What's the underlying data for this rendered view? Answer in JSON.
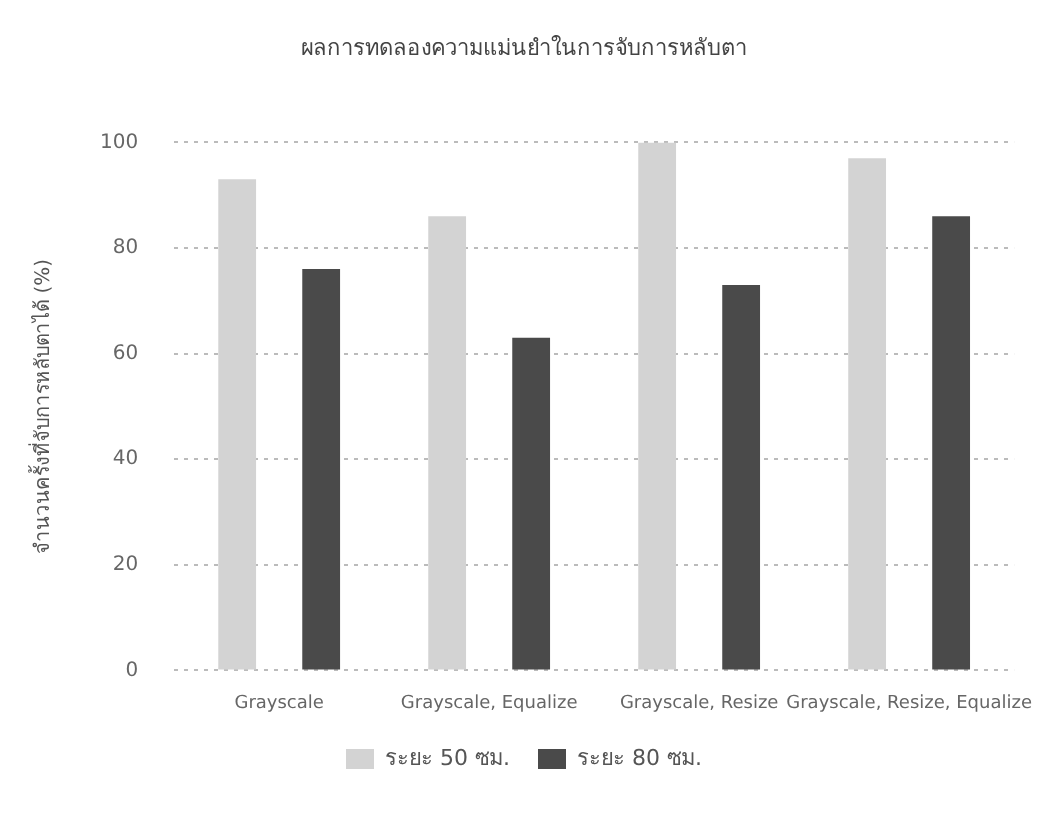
{
  "chart_data": {
    "type": "bar",
    "title": "ผลการทดลองความแม่นยำในการจับการหลับตา",
    "ylabel": "จำนวนครั้งที่จับการหลับตาได้ (%)",
    "categories": [
      "Grayscale",
      "Grayscale, Equalize",
      "Grayscale, Resize",
      "Grayscale, Resize, Equalize"
    ],
    "series": [
      {
        "name": "ระยะ 50 ซม.",
        "color": "#d3d3d3",
        "values": [
          93,
          86,
          100,
          97
        ]
      },
      {
        "name": "ระยะ 80 ซม.",
        "color": "#4a4a4a",
        "values": [
          76,
          63,
          73,
          86
        ]
      }
    ],
    "ylim": [
      0,
      100
    ],
    "yticks": [
      0,
      20,
      40,
      60,
      80,
      100
    ],
    "grid": "y",
    "legend": "bottom"
  }
}
